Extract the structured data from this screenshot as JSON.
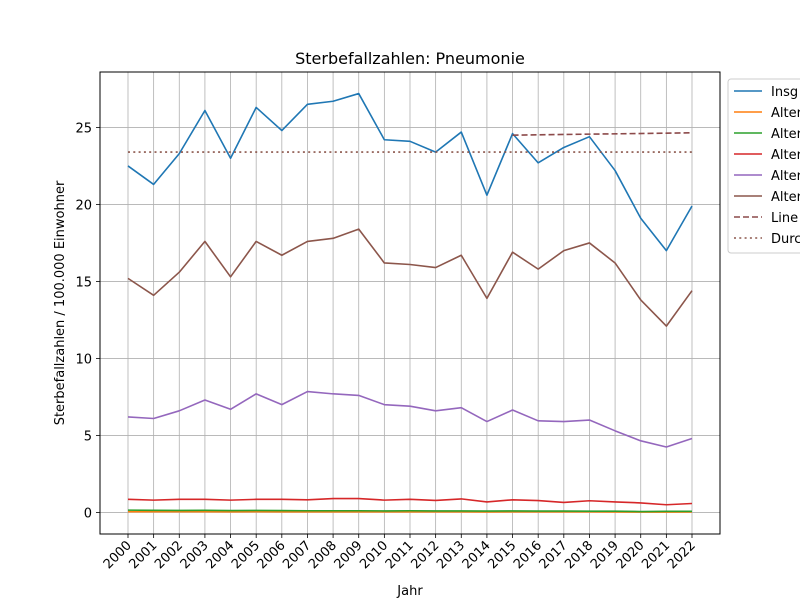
{
  "chart_data": {
    "type": "line",
    "title": "Sterbefallzahlen: Pneumonie",
    "xlabel": "Jahr",
    "ylabel": "Sterbefallzahlen / 100.000 Einwohner",
    "x": [
      2000,
      2001,
      2002,
      2003,
      2004,
      2005,
      2006,
      2007,
      2008,
      2009,
      2010,
      2011,
      2012,
      2013,
      2014,
      2015,
      2016,
      2017,
      2018,
      2019,
      2020,
      2021,
      2022
    ],
    "yticks": [
      0,
      5,
      10,
      15,
      20,
      25
    ],
    "ylim": [
      -1.4,
      28.6
    ],
    "grid": true,
    "legend_position": "right, partially outside plot (cropped)",
    "series": [
      {
        "name": "Insg",
        "color": "#1f77b4",
        "style": "solid",
        "values": [
          22.5,
          21.3,
          23.3,
          26.1,
          23.0,
          26.3,
          24.8,
          26.5,
          26.7,
          27.2,
          24.2,
          24.1,
          23.4,
          24.7,
          20.6,
          24.6,
          22.7,
          23.7,
          24.4,
          22.2,
          19.1,
          17.0,
          19.9
        ]
      },
      {
        "name": "Alter",
        "color": "#ff7f0e",
        "style": "solid",
        "values": [
          0.05,
          0.05,
          0.05,
          0.05,
          0.04,
          0.05,
          0.04,
          0.04,
          0.04,
          0.04,
          0.04,
          0.04,
          0.04,
          0.04,
          0.03,
          0.04,
          0.04,
          0.04,
          0.04,
          0.03,
          0.02,
          0.02,
          0.03
        ]
      },
      {
        "name": "Alter",
        "color": "#2ca02c",
        "style": "solid",
        "values": [
          0.15,
          0.14,
          0.13,
          0.14,
          0.12,
          0.13,
          0.12,
          0.11,
          0.11,
          0.11,
          0.1,
          0.11,
          0.1,
          0.1,
          0.09,
          0.1,
          0.09,
          0.09,
          0.08,
          0.08,
          0.06,
          0.07,
          0.07
        ]
      },
      {
        "name": "Alter",
        "color": "#d62728",
        "style": "solid",
        "values": [
          0.85,
          0.8,
          0.85,
          0.85,
          0.8,
          0.85,
          0.85,
          0.82,
          0.9,
          0.9,
          0.8,
          0.85,
          0.78,
          0.88,
          0.68,
          0.82,
          0.77,
          0.65,
          0.76,
          0.68,
          0.62,
          0.5,
          0.58
        ]
      },
      {
        "name": "Alter",
        "color": "#9467bd",
        "style": "solid",
        "values": [
          6.2,
          6.1,
          6.6,
          7.3,
          6.7,
          7.7,
          7.0,
          7.85,
          7.7,
          7.6,
          7.0,
          6.9,
          6.6,
          6.8,
          5.9,
          6.65,
          5.95,
          5.9,
          6.0,
          5.3,
          4.65,
          4.25,
          4.8
        ]
      },
      {
        "name": "Alter",
        "color": "#8c564b",
        "style": "solid",
        "values": [
          15.2,
          14.1,
          15.6,
          17.6,
          15.3,
          17.6,
          16.7,
          17.6,
          17.8,
          18.4,
          16.2,
          16.1,
          15.9,
          16.7,
          13.9,
          16.9,
          15.8,
          17.0,
          17.5,
          16.2,
          13.8,
          12.1,
          14.4
        ]
      },
      {
        "name": "Line",
        "color": "#8c4a4a",
        "style": "dashed",
        "x": [
          2015,
          2022
        ],
        "values": [
          24.5,
          24.65
        ]
      },
      {
        "name": "Durc",
        "color": "#8c564b",
        "style": "dotted",
        "x": [
          2000,
          2022
        ],
        "values": [
          23.4,
          23.4
        ]
      }
    ]
  }
}
